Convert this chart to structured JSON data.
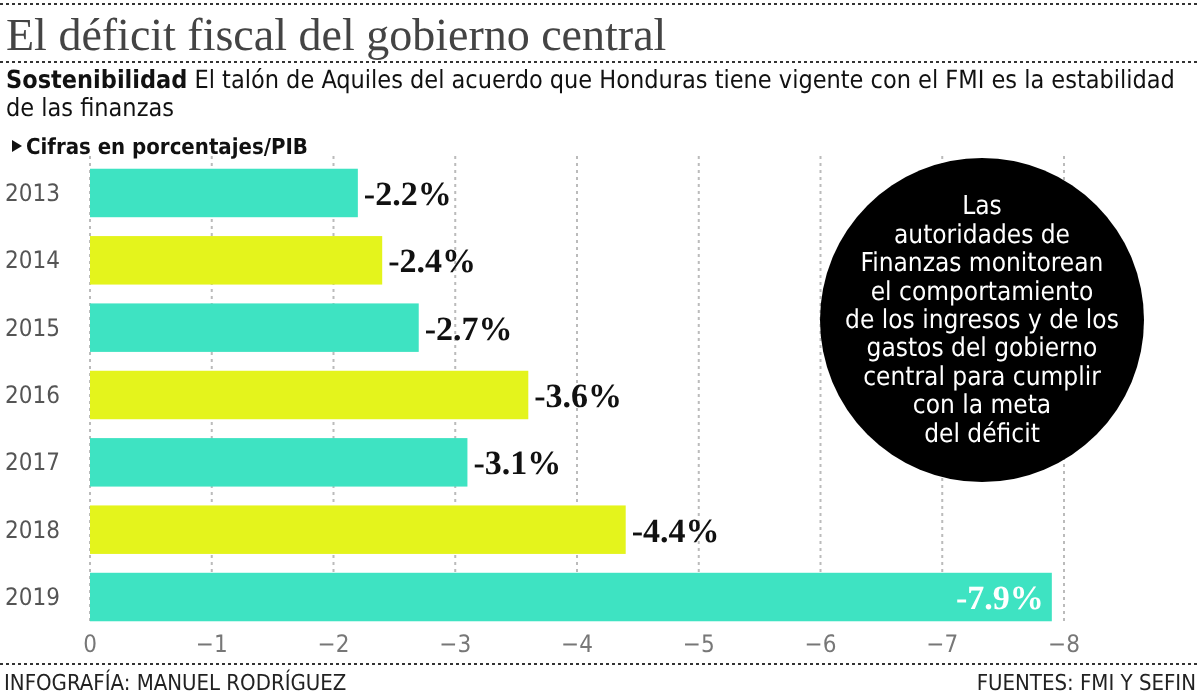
{
  "chart_data": {
    "type": "bar",
    "orientation": "horizontal",
    "title": "El déficit fiscal del gobierno central",
    "subtitle": "Sostenibilidad El talón de Aquiles del acuerdo que Honduras tiene vigente con el FMI es la estabilidad de las finanzas",
    "categories": [
      "2013",
      "2014",
      "2015",
      "2016",
      "2017",
      "2018",
      "2019"
    ],
    "values": [
      -2.2,
      -2.4,
      -2.7,
      -3.6,
      -3.1,
      -4.4,
      -7.9
    ],
    "colors": [
      "#3ee3c2",
      "#e4f41c",
      "#3ee3c2",
      "#e4f41c",
      "#3ee3c2",
      "#e4f41c",
      "#3ee3c2"
    ],
    "value_labels": [
      "-2.2%",
      "-2.4%",
      "-2.7%",
      "-3.6%",
      "-3.1%",
      "-4.4%",
      "-7.9%"
    ],
    "xlim": [
      0,
      -8
    ],
    "xticks": [
      0,
      {
        "value": -1,
        "label": "−1"
      },
      {
        "value": -2,
        "label": "−2"
      },
      {
        "value": -3,
        "label": "−3"
      },
      {
        "value": -4,
        "label": "−4"
      },
      {
        "value": -5,
        "label": "−5"
      },
      {
        "value": -6,
        "label": "−6"
      },
      {
        "value": -7,
        "label": "−7"
      },
      {
        "value": -8,
        "label": "−8"
      }
    ],
    "grid": "x",
    "annotations": [
      "Cifras en porcentajes/PIB",
      "Las\nautoridades de\nFinanzas monitorean\nel comportamiento\nde los ingresos y de los\ngastos del gobierno\ncentral para cumplir\ncon la meta\ndel déficit",
      "INFOGRAFÍA: MANUEL RODRÍGUEZ",
      "FUENTES: FMI Y SEFIN"
    ]
  }
}
